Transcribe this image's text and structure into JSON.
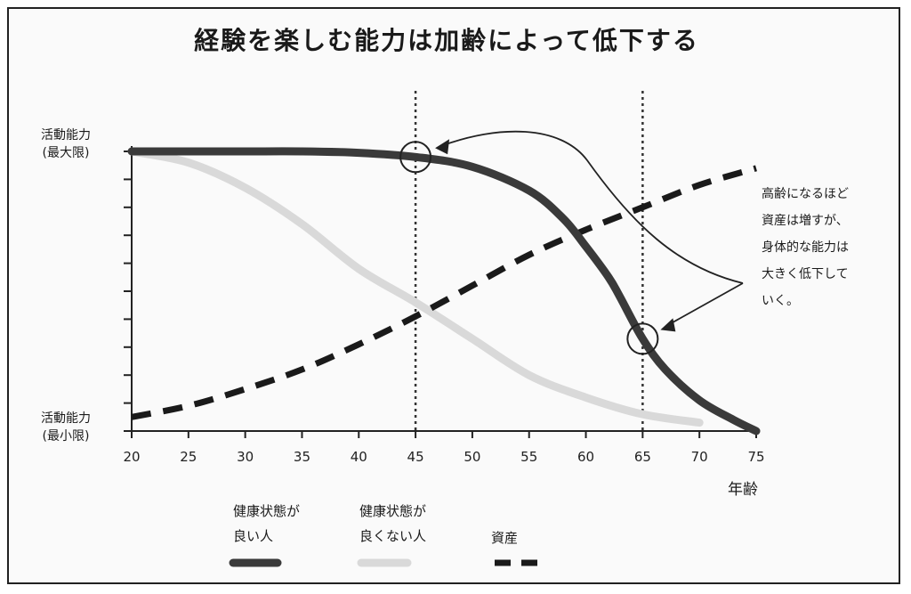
{
  "chart_data": {
    "type": "line",
    "title": "経験を楽しむ能力は加齢によって低下する",
    "ylabel_top": [
      "活動能力",
      "(最大限)"
    ],
    "ylabel_bottom": [
      "活動能力",
      "(最小限)"
    ],
    "xlabel": "年齢",
    "x_ticks": [
      "20",
      "25",
      "30",
      "35",
      "40",
      "45",
      "50",
      "55",
      "60",
      "65",
      "70",
      "75"
    ],
    "xlim": [
      20,
      75
    ],
    "ylim": [
      0,
      1
    ],
    "grid": false,
    "series": [
      {
        "name": "健康状態が良い人",
        "style": "solid-dark",
        "color": "#3a3a3a",
        "points": [
          [
            20,
            1.0
          ],
          [
            25,
            1.0
          ],
          [
            30,
            1.0
          ],
          [
            35,
            1.0
          ],
          [
            40,
            0.995
          ],
          [
            45,
            0.98
          ],
          [
            50,
            0.945
          ],
          [
            55,
            0.86
          ],
          [
            58,
            0.76
          ],
          [
            60,
            0.66
          ],
          [
            62,
            0.55
          ],
          [
            63,
            0.48
          ],
          [
            65,
            0.33
          ],
          [
            67,
            0.22
          ],
          [
            70,
            0.11
          ],
          [
            73,
            0.04
          ],
          [
            75,
            0.0
          ]
        ]
      },
      {
        "name": "健康状態が良くない人",
        "style": "solid-light",
        "color": "#d9d9d9",
        "points": [
          [
            20,
            1.0
          ],
          [
            25,
            0.96
          ],
          [
            30,
            0.87
          ],
          [
            35,
            0.74
          ],
          [
            40,
            0.58
          ],
          [
            45,
            0.46
          ],
          [
            50,
            0.33
          ],
          [
            55,
            0.2
          ],
          [
            60,
            0.12
          ],
          [
            65,
            0.06
          ],
          [
            70,
            0.03
          ]
        ]
      },
      {
        "name": "資産",
        "style": "dashed",
        "color": "#1a1a1a",
        "points": [
          [
            20,
            0.05
          ],
          [
            25,
            0.09
          ],
          [
            30,
            0.15
          ],
          [
            35,
            0.22
          ],
          [
            40,
            0.31
          ],
          [
            45,
            0.41
          ],
          [
            50,
            0.52
          ],
          [
            55,
            0.63
          ],
          [
            60,
            0.72
          ],
          [
            65,
            0.8
          ],
          [
            70,
            0.88
          ],
          [
            75,
            0.94
          ]
        ]
      }
    ],
    "vertical_markers": [
      45,
      65
    ],
    "circled_points": [
      [
        45,
        0.98
      ],
      [
        65,
        0.33
      ]
    ],
    "annotation": [
      "高齢になるほど",
      "資産は増すが、",
      "身体的な能力は",
      "大きく低下して",
      "いく。"
    ]
  },
  "legend": [
    {
      "lines": [
        "健康状態が",
        "良い人"
      ]
    },
    {
      "lines": [
        "健康状態が",
        "良くない人"
      ]
    },
    {
      "lines": [
        "資産"
      ]
    }
  ]
}
